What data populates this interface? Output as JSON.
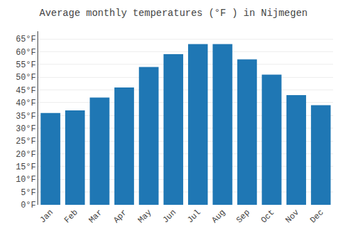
{
  "chart_data": {
    "type": "bar",
    "title": "Average monthly temperatures (°F ) in Nijmegen",
    "categories": [
      "Jan",
      "Feb",
      "Mar",
      "Apr",
      "May",
      "Jun",
      "Jul",
      "Aug",
      "Sep",
      "Oct",
      "Nov",
      "Dec"
    ],
    "values": [
      36,
      37,
      42,
      46,
      54,
      59,
      63,
      63,
      57,
      51,
      43,
      39
    ],
    "ylim": [
      0,
      68
    ],
    "yticks": [
      {
        "value": 0,
        "label": "0°F"
      },
      {
        "value": 5,
        "label": "5°F"
      },
      {
        "value": 10,
        "label": "10°F"
      },
      {
        "value": 15,
        "label": "15°F"
      },
      {
        "value": 20,
        "label": "20°F"
      },
      {
        "value": 25,
        "label": "25°F"
      },
      {
        "value": 30,
        "label": "30°F"
      },
      {
        "value": 35,
        "label": "35°F"
      },
      {
        "value": 40,
        "label": "40°F"
      },
      {
        "value": 45,
        "label": "45°F"
      },
      {
        "value": 50,
        "label": "50°F"
      },
      {
        "value": 55,
        "label": "55°F"
      },
      {
        "value": 60,
        "label": "60°F"
      },
      {
        "value": 65,
        "label": "65°F"
      }
    ],
    "grid": true
  }
}
